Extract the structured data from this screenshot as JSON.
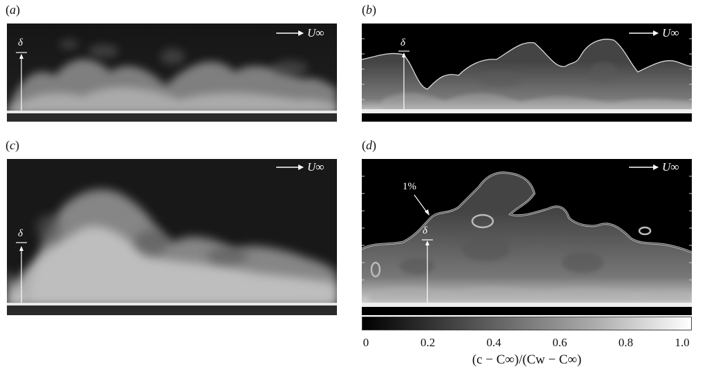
{
  "panels": {
    "a": {
      "label": "(a)",
      "flow_label": "U∞",
      "thickness_label": "δ"
    },
    "b": {
      "label": "(b)",
      "flow_label": "U∞",
      "thickness_label": "δ"
    },
    "c": {
      "label": "(c)",
      "flow_label": "U∞",
      "thickness_label": "δ"
    },
    "d": {
      "label": "(d)",
      "flow_label": "U∞",
      "thickness_label": "δ",
      "contour_label": "1%"
    }
  },
  "colorbar": {
    "ticks": [
      "0",
      "0.2",
      "0.4",
      "0.6",
      "0.8",
      "1.0"
    ],
    "title": "(c − C∞)/(Cw − C∞)",
    "range": [
      0,
      1.0
    ],
    "colors": [
      "#000000",
      "#ffffff"
    ]
  }
}
